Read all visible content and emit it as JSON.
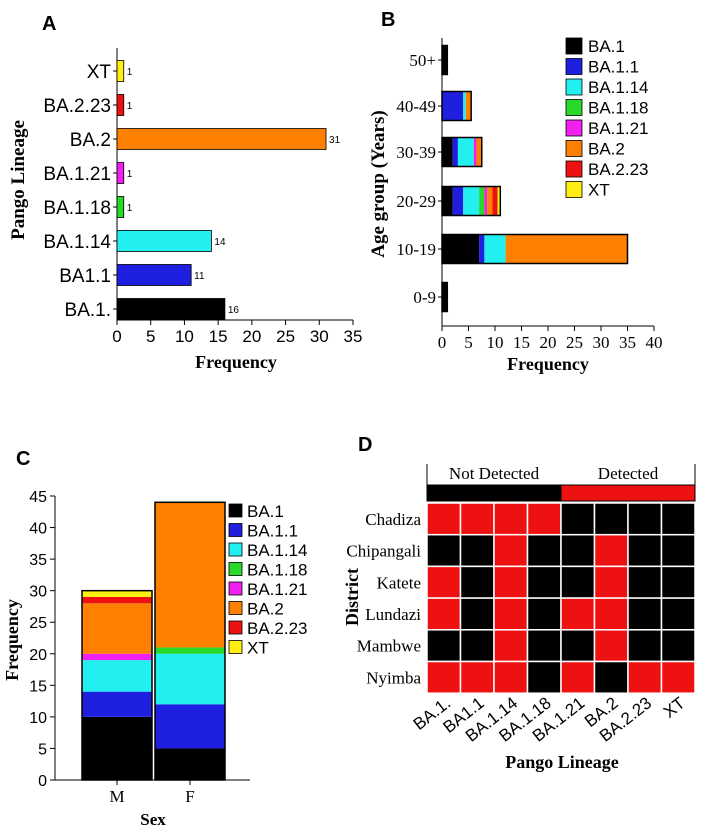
{
  "chart_data": [
    {
      "panel": "A",
      "type": "bar",
      "orientation": "horizontal",
      "categories": [
        "BA.1.",
        "BA1.1",
        "BA.1.14",
        "BA.1.18",
        "BA.1.21",
        "BA.2",
        "BA.2.23",
        "XT"
      ],
      "values": [
        16,
        11,
        14,
        1,
        1,
        31,
        1,
        1
      ],
      "colors": [
        "#000000",
        "#1f1fe0",
        "#22f0f0",
        "#2ad82a",
        "#f020f0",
        "#ff8000",
        "#ee1111",
        "#ffee11"
      ],
      "xlabel": "Frequency",
      "ylabel": "Pango Lineage",
      "xlim": [
        0,
        35
      ],
      "xticks": [
        0,
        5,
        10,
        15,
        20,
        25,
        30,
        35
      ]
    },
    {
      "panel": "B",
      "type": "bar",
      "orientation": "horizontal",
      "stacked": true,
      "categories": [
        "0-9",
        "10-19",
        "20-29",
        "30-39",
        "40-49",
        "50+"
      ],
      "series": [
        {
          "name": "BA.1",
          "color": "#000000",
          "values": [
            1,
            7,
            2,
            2,
            0,
            1
          ]
        },
        {
          "name": "BA.1.1",
          "color": "#1f1fe0",
          "values": [
            0,
            1,
            2,
            1,
            4,
            0
          ]
        },
        {
          "name": "BA.1.14",
          "color": "#22f0f0",
          "values": [
            0,
            4,
            3,
            3,
            0.5,
            0
          ]
        },
        {
          "name": "BA.1.18",
          "color": "#2ad82a",
          "values": [
            0,
            0,
            1,
            0,
            0,
            0
          ]
        },
        {
          "name": "BA.1.21",
          "color": "#f020f0",
          "values": [
            0,
            0,
            0.5,
            0.5,
            0,
            0
          ]
        },
        {
          "name": "BA.2",
          "color": "#ff8000",
          "values": [
            0,
            23,
            1,
            1,
            1,
            0
          ]
        },
        {
          "name": "BA.2.23",
          "color": "#ee1111",
          "values": [
            0,
            0,
            1,
            0,
            0,
            0
          ]
        },
        {
          "name": "XT",
          "color": "#ffee11",
          "values": [
            0,
            0,
            0.5,
            0,
            0,
            0
          ]
        }
      ],
      "xlabel": "Frequency",
      "ylabel": "Age group (Years)",
      "xlim": [
        0,
        40
      ],
      "xticks": [
        0,
        5,
        10,
        15,
        20,
        25,
        30,
        35,
        40
      ]
    },
    {
      "panel": "C",
      "type": "bar",
      "stacked": true,
      "categories": [
        "M",
        "F"
      ],
      "series": [
        {
          "name": "BA.1",
          "color": "#000000",
          "values": [
            10,
            5
          ]
        },
        {
          "name": "BA.1.1",
          "color": "#1f1fe0",
          "values": [
            4,
            7
          ]
        },
        {
          "name": "BA.1.14",
          "color": "#22f0f0",
          "values": [
            5,
            8
          ]
        },
        {
          "name": "BA.1.18",
          "color": "#2ad82a",
          "values": [
            0,
            1
          ]
        },
        {
          "name": "BA.1.21",
          "color": "#f020f0",
          "values": [
            1,
            0
          ]
        },
        {
          "name": "BA.2",
          "color": "#ff8000",
          "values": [
            8,
            23
          ]
        },
        {
          "name": "BA.2.23",
          "color": "#ee1111",
          "values": [
            1,
            0
          ]
        },
        {
          "name": "XT",
          "color": "#ffee11",
          "values": [
            1,
            0
          ]
        }
      ],
      "xlabel": "Sex",
      "ylabel": "Frequency",
      "ylim": [
        0,
        45
      ],
      "yticks": [
        0,
        5,
        10,
        15,
        20,
        25,
        30,
        35,
        40,
        45
      ]
    },
    {
      "panel": "D",
      "type": "heatmap",
      "rows": [
        "Chadiza",
        "Chipangali",
        "Katete",
        "Lundazi",
        "Mambwe",
        "Nyimba"
      ],
      "columns": [
        "BA.1.",
        "BA1.1",
        "BA.1.14",
        "BA.1.18",
        "BA.1.21",
        "BA.2",
        "BA.2.23",
        "XT"
      ],
      "values": [
        [
          1,
          1,
          1,
          1,
          0,
          0,
          0,
          0
        ],
        [
          0,
          0,
          1,
          0,
          0,
          1,
          0,
          0
        ],
        [
          1,
          0,
          1,
          0,
          0,
          1,
          0,
          0
        ],
        [
          1,
          0,
          1,
          0,
          1,
          1,
          0,
          0
        ],
        [
          0,
          0,
          1,
          0,
          0,
          1,
          0,
          0
        ],
        [
          1,
          1,
          1,
          0,
          1,
          0,
          1,
          1
        ]
      ],
      "legend": {
        "zero": "Not Detected",
        "one": "Detected",
        "zero_color": "#000000",
        "one_color": "#ee1111"
      },
      "xlabel": "Pango Lineage",
      "ylabel": "District"
    }
  ],
  "panel_labels": {
    "a": "A",
    "b": "B",
    "c": "C",
    "d": "D"
  }
}
